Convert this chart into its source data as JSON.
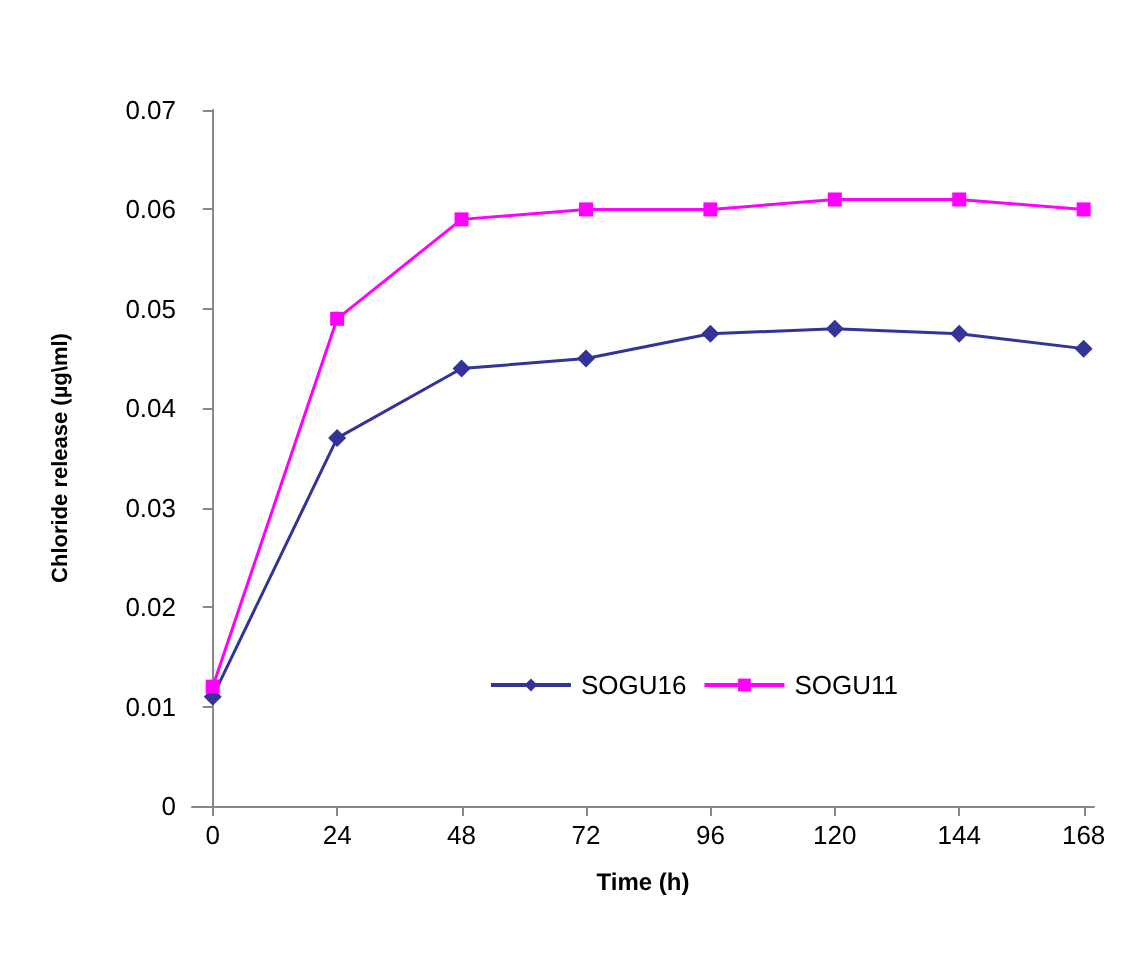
{
  "chart_data": {
    "type": "line",
    "xlabel": "Time (h)",
    "ylabel": "Chloride release (µg\\ml)",
    "x": [
      0,
      24,
      48,
      72,
      96,
      120,
      144,
      168
    ],
    "series": [
      {
        "name": "SOGU16",
        "color": "#333399",
        "marker": "diamond",
        "values": [
          0.011,
          0.037,
          0.044,
          0.045,
          0.0475,
          0.048,
          0.0475,
          0.046
        ]
      },
      {
        "name": "SOGU11",
        "color": "#ff00ff",
        "marker": "square",
        "values": [
          0.012,
          0.049,
          0.059,
          0.06,
          0.06,
          0.061,
          0.061,
          0.06
        ]
      }
    ],
    "xlim": [
      -4,
      170
    ],
    "xticks": [
      0,
      24,
      48,
      72,
      96,
      120,
      144,
      168
    ],
    "ylim": [
      0,
      0.07
    ],
    "yticks": [
      0,
      0.01,
      0.02,
      0.03,
      0.04,
      0.05,
      0.06,
      0.07
    ],
    "grid": false,
    "legend": "bottom right",
    "line_style": "solid"
  }
}
